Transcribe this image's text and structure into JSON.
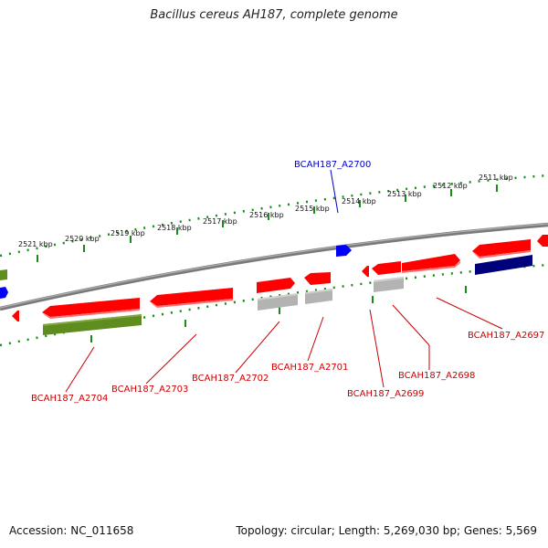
{
  "title": "Bacillus cereus AH187, complete genome",
  "footer": {
    "accession": "Accession: NC_011658",
    "summary": "Topology: circular; Length: 5,269,030 bp; Genes: 5,569"
  },
  "colors": {
    "backbone": "#808080",
    "tick": "#1a8a1a",
    "gene_red": "#ff0000",
    "gene_blue": "#0000ff",
    "gene_navy": "#00007a",
    "gene_gray": "#b3b3b3",
    "gene_olive": "#5f8c1e",
    "label_red": "#cc0000",
    "label_blue": "#0000cc"
  },
  "kbp_labels": [
    "2521 kbp",
    "2520 kbp",
    "2519 kbp",
    "2518 kbp",
    "2517 kbp",
    "2516 kbp",
    "2515 kbp",
    "2514 kbp",
    "2513 kbp",
    "2512 kbp",
    "2511 kbp"
  ],
  "gene_labels": [
    "BCAH187_A2700",
    "BCAH187_A2704",
    "BCAH187_A2703",
    "BCAH187_A2702",
    "BCAH187_A2701",
    "BCAH187_A2699",
    "BCAH187_A2698",
    "BCAH187_A2697"
  ]
}
